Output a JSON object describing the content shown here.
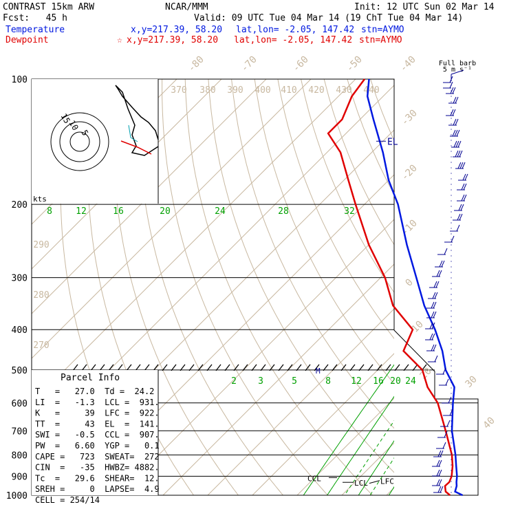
{
  "header": {
    "model": "CONTRAST 15km ARW",
    "forecast": "Fcst:   45 h",
    "center": "NCAR/MMM",
    "init": "Init: 12 UTC Sun 02 Mar 14",
    "valid": "Valid: 09 UTC Tue 04 Mar 14 (19 ChT Tue 04 Mar 14)",
    "temp_label": "Temperature",
    "temp_xy": "x,y=217.39, 58.20",
    "temp_latlon": "lat,lon= -2.05, 147.42",
    "temp_stn": "stn=AYMO",
    "dew_label": "Dewpoint",
    "dew_star": "☆",
    "dew_xy": "x,y=217.39, 58.20",
    "dew_latlon": "lat,lon= -2.05, 147.42",
    "dew_stn": "stn=AYMO"
  },
  "colors": {
    "temperature": "#0018e0",
    "dewpoint": "#e00000",
    "isotherm": "#c8b8a0",
    "mixing_ratio": "#00a000",
    "grid": "#000000",
    "barb": "#000090"
  },
  "barb_key": [
    "Full barb",
    "5 m s⁻¹"
  ],
  "hodograph": {
    "label": "kts",
    "rings": [
      "15",
      "10",
      "5"
    ]
  },
  "parcel_info": {
    "title": "Parcel Info",
    "rows": [
      "T   =   27.0  Td =  24.2",
      "LI  =   -1.3  LCL =  931.",
      "K   =     39  LFC =  922.",
      "TT  =     43  EL  =  141.",
      "SWI =   -0.5  CCL =  907.",
      "PW  =   6.60  YGP =   0.1",
      "CAPE =   723  SWEAT=  272",
      "CIN  =   -35  HWBZ= 4882.",
      "Tc  =   29.6  SHEAR=  12.",
      "SREH =     0  LAPSE=  4.9",
      "CELL = 254/14"
    ]
  },
  "level_labels": {
    "el": "EL",
    "ccl": "CCL",
    "lcl": "LCL",
    "lfc": "LFC",
    "m": "M"
  },
  "chart_data": {
    "type": "line",
    "x_axis": "temperature (C), skewed",
    "y_axis": "pressure (hPa), log scale",
    "pressure_levels": [
      100,
      200,
      300,
      400,
      500,
      600,
      700,
      800,
      900,
      1000
    ],
    "isotherm_labels": [
      "-80",
      "-70",
      "-60",
      "-50",
      "-40",
      "-30",
      "-20",
      "-10",
      "0",
      "10",
      "20",
      "30",
      "40"
    ],
    "theta_labels": [
      "370",
      "380",
      "390",
      "400",
      "410",
      "420",
      "430",
      "440",
      "290",
      "280",
      "270"
    ],
    "mixing_ratio_labels_upper": [
      "8",
      "12",
      "16",
      "20",
      "24",
      "28",
      "32"
    ],
    "mixing_ratio_labels_lower": [
      "2",
      "3",
      "5",
      "8",
      "12",
      "16",
      "20",
      "24"
    ],
    "series": [
      {
        "name": "Temperature",
        "points": [
          [
            1000,
            27.0
          ],
          [
            980,
            24.5
          ],
          [
            950,
            23.6
          ],
          [
            930,
            22.7
          ],
          [
            900,
            21.5
          ],
          [
            850,
            19.0
          ],
          [
            800,
            16.4
          ],
          [
            700,
            10.2
          ],
          [
            600,
            4.2
          ],
          [
            550,
            1.0
          ],
          [
            500,
            -4.8
          ],
          [
            450,
            -9.8
          ],
          [
            400,
            -16.2
          ],
          [
            350,
            -24.0
          ],
          [
            300,
            -32.0
          ],
          [
            250,
            -41.5
          ],
          [
            200,
            -52.5
          ],
          [
            175,
            -60.0
          ],
          [
            150,
            -67.5
          ],
          [
            125,
            -77.0
          ],
          [
            110,
            -83.5
          ],
          [
            100,
            -87.0
          ]
        ]
      },
      {
        "name": "Dewpoint",
        "points": [
          [
            1000,
            24.2
          ],
          [
            980,
            22.4
          ],
          [
            950,
            21.0
          ],
          [
            930,
            21.1
          ],
          [
            900,
            20.3
          ],
          [
            850,
            18.2
          ],
          [
            800,
            15.6
          ],
          [
            700,
            8.8
          ],
          [
            600,
            0.8
          ],
          [
            550,
            -5.0
          ],
          [
            500,
            -10.0
          ],
          [
            450,
            -18.5
          ],
          [
            400,
            -21.2
          ],
          [
            350,
            -31.0
          ],
          [
            300,
            -39.0
          ],
          [
            250,
            -50.0
          ],
          [
            200,
            -62.0
          ],
          [
            175,
            -69.0
          ],
          [
            150,
            -77.0
          ],
          [
            135,
            -84.0
          ],
          [
            125,
            -84.0
          ],
          [
            110,
            -87.0
          ],
          [
            100,
            -88.0
          ]
        ]
      }
    ]
  }
}
